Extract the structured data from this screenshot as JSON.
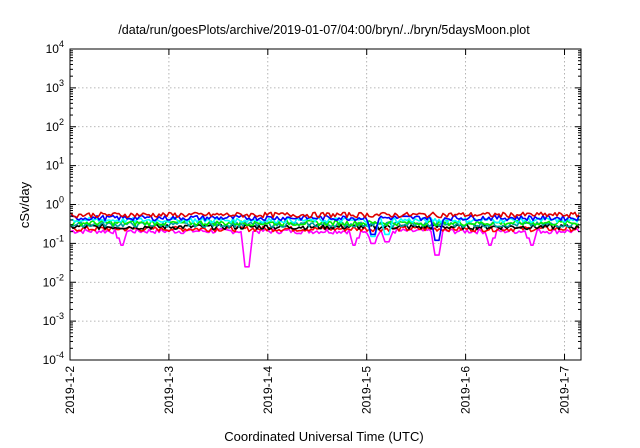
{
  "chart_data": {
    "type": "line",
    "title": "/data/run/goesPlots/archive/2019-01-07/04:00/bryn/../bryn/5daysMoon.plot",
    "xlabel": "Coordinated Universal Time (UTC)",
    "ylabel": "cSv/day",
    "yscale": "log",
    "ylim": [
      0.0001,
      10000
    ],
    "y_ticks": [
      {
        "base": "10",
        "exp": "-4",
        "value": 0.0001
      },
      {
        "base": "10",
        "exp": "-3",
        "value": 0.001
      },
      {
        "base": "10",
        "exp": "-2",
        "value": 0.01
      },
      {
        "base": "10",
        "exp": "-1",
        "value": 0.1
      },
      {
        "base": "10",
        "exp": "0",
        "value": 1
      },
      {
        "base": "10",
        "exp": "1",
        "value": 10
      },
      {
        "base": "10",
        "exp": "2",
        "value": 100
      },
      {
        "base": "10",
        "exp": "3",
        "value": 1000
      },
      {
        "base": "10",
        "exp": "4",
        "value": 10000
      }
    ],
    "x_ticks": [
      "2019-1-2",
      "2019-1-3",
      "2019-1-4",
      "2019-1-5",
      "2019-1-6",
      "2019-1-7"
    ],
    "xlim": [
      "2019-01-02 00:00",
      "2019-01-07 04:00"
    ],
    "grid": true,
    "series": [
      {
        "color": "#ff00ff",
        "base": 0.21,
        "dips": [
          {
            "x": "2019-01-02 12:30",
            "v": 0.09
          },
          {
            "x": "2019-01-03 19:00",
            "v": 0.025
          },
          {
            "x": "2019-01-04 21:00",
            "v": 0.09
          },
          {
            "x": "2019-01-05 01:30",
            "v": 0.1
          },
          {
            "x": "2019-01-05 05:00",
            "v": 0.11
          },
          {
            "x": "2019-01-05 17:00",
            "v": 0.05
          },
          {
            "x": "2019-01-06 06:00",
            "v": 0.09
          },
          {
            "x": "2019-01-06 16:00",
            "v": 0.09
          }
        ]
      },
      {
        "color": "#ff0000",
        "base": 0.24,
        "dips": []
      },
      {
        "color": "#000000",
        "base": 0.27,
        "dips": []
      },
      {
        "color": "#00a0a0",
        "base": 0.31,
        "dips": []
      },
      {
        "color": "#00ee00",
        "base": 0.34,
        "dips": []
      },
      {
        "color": "#00ffff",
        "base": 0.4,
        "dips": [
          {
            "x": "2019-01-05 01:30",
            "v": 0.15
          },
          {
            "x": "2019-01-05 05:00",
            "v": 0.17
          }
        ]
      },
      {
        "color": "#0000ff",
        "base": 0.46,
        "dips": [
          {
            "x": "2019-01-05 01:30",
            "v": 0.17
          },
          {
            "x": "2019-01-05 17:00",
            "v": 0.12
          }
        ]
      },
      {
        "color": "#dd0000",
        "base": 0.55,
        "dips": []
      }
    ]
  }
}
